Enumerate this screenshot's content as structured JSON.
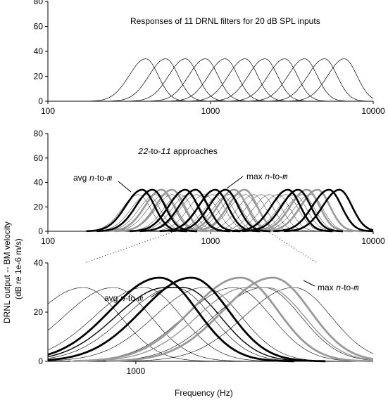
{
  "figure": {
    "ylabel_line1": "DRNL output -- BM velocity",
    "ylabel_line2": "(dB re 1e-6 m/s)",
    "xlabel": "Frequency (Hz)"
  },
  "chart_data": [
    {
      "type": "line",
      "panel": "top",
      "title": "Responses of 11 DRNL filters for 20 dB SPL inputs",
      "xscale": "log",
      "xlim": [
        100,
        10000
      ],
      "ylim": [
        0,
        80
      ],
      "yticks": [
        "0",
        "20",
        "40",
        "60",
        "80"
      ],
      "xticks": [
        {
          "value": 100,
          "label": "100"
        },
        {
          "value": 1000,
          "label": "1000"
        },
        {
          "value": 10000,
          "label": "10000"
        }
      ],
      "peak_level": 34,
      "series": [
        {
          "cf": 400
        },
        {
          "cf": 530
        },
        {
          "cf": 700
        },
        {
          "cf": 930
        },
        {
          "cf": 1230
        },
        {
          "cf": 1630
        },
        {
          "cf": 2160
        },
        {
          "cf": 2860
        },
        {
          "cf": 3790
        },
        {
          "cf": 5020
        },
        {
          "cf": 6650
        }
      ]
    },
    {
      "type": "line",
      "panel": "middle",
      "title": "",
      "xscale": "log",
      "xlim": [
        100,
        10000
      ],
      "ylim": [
        0,
        80
      ],
      "yticks": [
        "0",
        "20",
        "40",
        "60",
        "80"
      ],
      "xticks": [
        {
          "value": 100,
          "label": "100"
        },
        {
          "value": 1000,
          "label": "1000"
        },
        {
          "value": 10000,
          "label": "10000"
        }
      ],
      "annotation_prefix": "22",
      "annotation_mid": "-to-",
      "annotation_num": "11",
      "annotation_suffix": " approaches",
      "label_avg": "avg ",
      "label_max": "max ",
      "label_var_n": "n",
      "label_sep": "-to-",
      "label_var_m": "m",
      "thin_cfs": [
        360,
        410,
        460,
        520,
        580,
        650,
        730,
        820,
        920,
        1030,
        1160,
        1300,
        1460,
        1640,
        1840,
        2060,
        2310,
        2590,
        2910,
        3270,
        3670,
        4120
      ],
      "thin_peak": 30,
      "avg_pairs": [
        [
          380,
          440
        ],
        [
          1070,
          1240
        ],
        [
          2990,
          3460
        ]
      ],
      "max_pairs": [
        [
          500,
          580
        ],
        [
          1400,
          1620
        ],
        [
          3920,
          4540
        ]
      ],
      "black_pairs_extra": [
        [
          700,
          810
        ],
        [
          5350,
          6200
        ]
      ],
      "peak_level": 34
    },
    {
      "type": "line",
      "panel": "bottom",
      "title": "",
      "xscale": "log",
      "xlim": [
        660,
        3070
      ],
      "ylim": [
        0,
        40
      ],
      "yticks": [
        "0",
        "20",
        "40"
      ],
      "xticks": [
        {
          "value": 1000,
          "label": "1000"
        }
      ],
      "label_avg": "avg ",
      "label_max": "max ",
      "label_var_n": "n",
      "label_sep": "-to-",
      "label_var_m": "m",
      "thin_cfs": [
        780,
        900,
        1040,
        1200,
        1380,
        1590,
        1830,
        2110
      ],
      "avg_pair": [
        1120,
        1300
      ],
      "avg_plateau": [
        1150,
        1250,
        30
      ],
      "max_pair": [
        1640,
        1910
      ],
      "max_plateau": [
        1690,
        1860,
        30
      ],
      "peak_level": 34
    }
  ]
}
